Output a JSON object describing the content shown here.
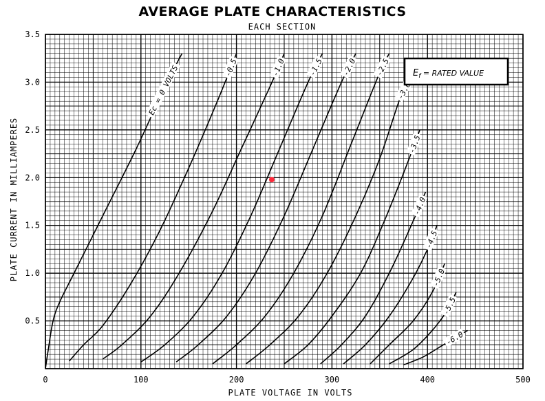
{
  "chart_data": {
    "type": "line",
    "title": "AVERAGE PLATE CHARACTERISTICS",
    "subtitle": "EACH SECTION",
    "xlabel": "PLATE VOLTAGE IN VOLTS",
    "ylabel": "PLATE CURRENT IN MILLIAMPERES",
    "xlim": [
      0,
      500
    ],
    "ylim": [
      0,
      3.5
    ],
    "x_ticks": [
      "0",
      "100",
      "200",
      "300",
      "400",
      "500"
    ],
    "y_ticks": [
      "0.5",
      "1.0",
      "1.5",
      "2.0",
      "2.5",
      "3.0",
      "3.5"
    ],
    "grid": true,
    "annotation": "E_f = RATED VALUE",
    "annotation_parts": {
      "symbol": "E",
      "subscript": "f",
      "rest": " = RATED VALUE"
    },
    "marker": {
      "x": 237,
      "y": 1.98,
      "color": "#ff2a3a"
    },
    "series": [
      {
        "label": "Ec = 0 VOLTS",
        "points": [
          [
            0,
            0
          ],
          [
            3,
            0.2
          ],
          [
            8,
            0.5
          ],
          [
            15,
            0.7
          ],
          [
            30,
            1.0
          ],
          [
            60,
            1.6
          ],
          [
            95,
            2.3
          ],
          [
            125,
            2.95
          ],
          [
            143,
            3.3
          ]
        ]
      },
      {
        "label": "-0.5",
        "points": [
          [
            25,
            0.08
          ],
          [
            40,
            0.25
          ],
          [
            60,
            0.45
          ],
          [
            90,
            0.9
          ],
          [
            120,
            1.45
          ],
          [
            150,
            2.1
          ],
          [
            180,
            2.8
          ],
          [
            200,
            3.3
          ]
        ]
      },
      {
        "label": "-1.0",
        "points": [
          [
            60,
            0.1
          ],
          [
            80,
            0.25
          ],
          [
            110,
            0.55
          ],
          [
            140,
            1.0
          ],
          [
            175,
            1.65
          ],
          [
            205,
            2.3
          ],
          [
            235,
            2.95
          ],
          [
            250,
            3.3
          ]
        ]
      },
      {
        "label": "-1.5",
        "points": [
          [
            100,
            0.07
          ],
          [
            125,
            0.25
          ],
          [
            155,
            0.55
          ],
          [
            185,
            1.0
          ],
          [
            215,
            1.6
          ],
          [
            245,
            2.3
          ],
          [
            275,
            3.0
          ],
          [
            290,
            3.3
          ]
        ]
      },
      {
        "label": "-2.0",
        "points": [
          [
            137,
            0.07
          ],
          [
            160,
            0.25
          ],
          [
            190,
            0.55
          ],
          [
            220,
            1.0
          ],
          [
            250,
            1.6
          ],
          [
            280,
            2.3
          ],
          [
            310,
            3.0
          ],
          [
            325,
            3.3
          ]
        ]
      },
      {
        "label": "-2.5",
        "points": [
          [
            175,
            0.05
          ],
          [
            200,
            0.25
          ],
          [
            230,
            0.55
          ],
          [
            260,
            1.0
          ],
          [
            290,
            1.6
          ],
          [
            320,
            2.35
          ],
          [
            350,
            3.1
          ],
          [
            360,
            3.3
          ]
        ]
      },
      {
        "label": "-3.0",
        "points": [
          [
            210,
            0.05
          ],
          [
            235,
            0.25
          ],
          [
            265,
            0.55
          ],
          [
            295,
            1.0
          ],
          [
            325,
            1.6
          ],
          [
            350,
            2.2
          ],
          [
            372,
            2.85
          ],
          [
            383,
            3.05
          ]
        ]
      },
      {
        "label": "-3.5",
        "points": [
          [
            250,
            0.05
          ],
          [
            275,
            0.25
          ],
          [
            300,
            0.55
          ],
          [
            330,
            1.0
          ],
          [
            355,
            1.55
          ],
          [
            377,
            2.1
          ],
          [
            392,
            2.5
          ]
        ]
      },
      {
        "label": "-4.0",
        "points": [
          [
            288,
            0.05
          ],
          [
            310,
            0.25
          ],
          [
            335,
            0.55
          ],
          [
            360,
            1.0
          ],
          [
            383,
            1.5
          ],
          [
            398,
            1.85
          ]
        ]
      },
      {
        "label": "-4.5",
        "points": [
          [
            312,
            0.05
          ],
          [
            335,
            0.25
          ],
          [
            360,
            0.55
          ],
          [
            385,
            0.95
          ],
          [
            400,
            1.25
          ],
          [
            410,
            1.5
          ]
        ]
      },
      {
        "label": "-5.0",
        "points": [
          [
            340,
            0.05
          ],
          [
            360,
            0.25
          ],
          [
            385,
            0.5
          ],
          [
            405,
            0.8
          ],
          [
            418,
            1.1
          ]
        ]
      },
      {
        "label": "-5.5",
        "points": [
          [
            360,
            0.05
          ],
          [
            385,
            0.2
          ],
          [
            405,
            0.4
          ],
          [
            420,
            0.6
          ],
          [
            430,
            0.8
          ]
        ]
      },
      {
        "label": "-6.0",
        "points": [
          [
            375,
            0.04
          ],
          [
            395,
            0.12
          ],
          [
            415,
            0.24
          ],
          [
            430,
            0.33
          ],
          [
            442,
            0.4
          ]
        ]
      }
    ]
  }
}
